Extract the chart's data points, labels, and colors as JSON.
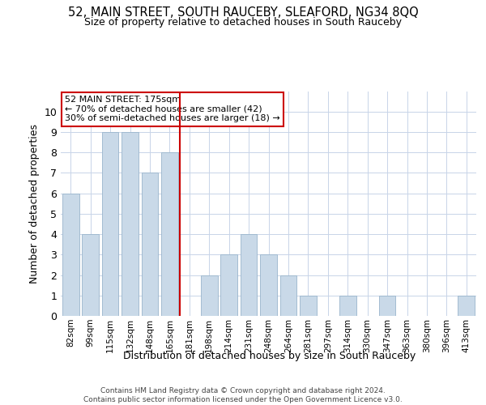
{
  "title1": "52, MAIN STREET, SOUTH RAUCEBY, SLEAFORD, NG34 8QQ",
  "title2": "Size of property relative to detached houses in South Rauceby",
  "xlabel": "Distribution of detached houses by size in South Rauceby",
  "ylabel": "Number of detached properties",
  "categories": [
    "82sqm",
    "99sqm",
    "115sqm",
    "132sqm",
    "148sqm",
    "165sqm",
    "181sqm",
    "198sqm",
    "214sqm",
    "231sqm",
    "248sqm",
    "264sqm",
    "281sqm",
    "297sqm",
    "314sqm",
    "330sqm",
    "347sqm",
    "363sqm",
    "380sqm",
    "396sqm",
    "413sqm"
  ],
  "values": [
    6,
    4,
    9,
    9,
    7,
    8,
    0,
    2,
    3,
    4,
    3,
    2,
    1,
    0,
    1,
    0,
    1,
    0,
    0,
    0,
    1
  ],
  "bar_color": "#c9d9e8",
  "bar_edge_color": "#9ab5cc",
  "grid_color": "#c8d4e8",
  "vline_x": 5.5,
  "vline_color": "#cc0000",
  "annotation_text": "52 MAIN STREET: 175sqm\n← 70% of detached houses are smaller (42)\n30% of semi-detached houses are larger (18) →",
  "annotation_box_color": "#ffffff",
  "annotation_box_edge": "#cc0000",
  "ylim": [
    0,
    11
  ],
  "yticks": [
    0,
    1,
    2,
    3,
    4,
    5,
    6,
    7,
    8,
    9,
    10,
    11
  ],
  "footnote": "Contains HM Land Registry data © Crown copyright and database right 2024.\nContains public sector information licensed under the Open Government Licence v3.0.",
  "bg_color": "#ffffff"
}
